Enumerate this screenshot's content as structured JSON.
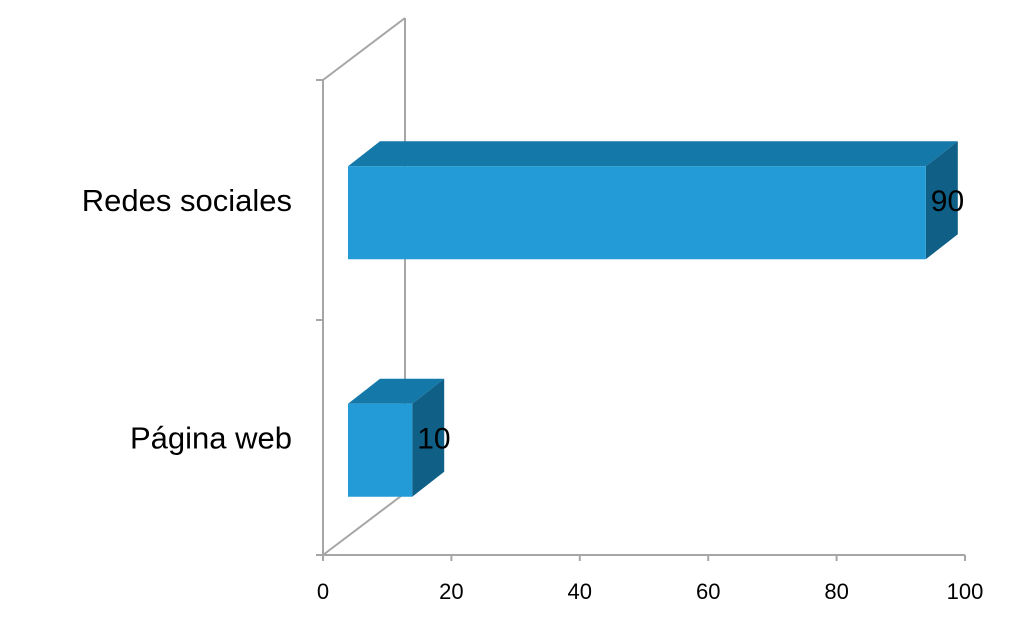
{
  "chart_data": {
    "type": "bar3d-horizontal",
    "categories": [
      "Redes sociales",
      "Página web"
    ],
    "values": [
      90,
      10
    ],
    "color": "#239bd7",
    "top_color": "#1479a9",
    "side_color": "#0f5f87",
    "xlim": [
      0,
      100
    ],
    "xticks": [
      0,
      20,
      40,
      60,
      80,
      100
    ]
  }
}
